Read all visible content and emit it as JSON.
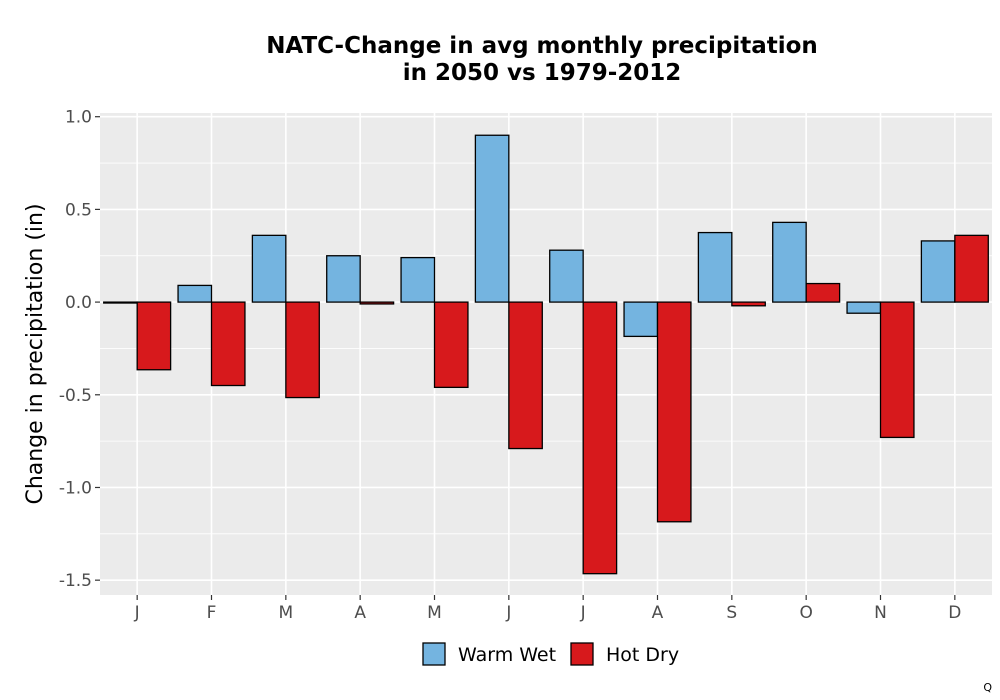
{
  "chart_data": {
    "type": "bar",
    "title_lines": [
      "NATC-Change in avg monthly precipitation",
      "in 2050 vs 1979-2012"
    ],
    "xlabel": "",
    "ylabel": "Change in precipitation (in)",
    "categories": [
      "J",
      "F",
      "M",
      "A",
      "M",
      "J",
      "J",
      "A",
      "S",
      "O",
      "N",
      "D"
    ],
    "series": [
      {
        "name": "Warm Wet",
        "color": "#74b4e0",
        "values": [
          -0.005,
          0.09,
          0.36,
          0.25,
          0.24,
          0.9,
          0.28,
          -0.185,
          0.375,
          0.43,
          -0.06,
          0.33
        ]
      },
      {
        "name": "Hot Dry",
        "color": "#d7191c",
        "values": [
          -0.365,
          -0.45,
          -0.515,
          -0.01,
          -0.46,
          -0.79,
          -1.465,
          -1.185,
          -0.02,
          0.1,
          -0.73,
          0.36
        ]
      }
    ],
    "ylim": [
      -1.58,
      1.02
    ],
    "yticks": [
      1.0,
      0.5,
      0.0,
      -0.5,
      -1.0,
      -1.5
    ],
    "ytick_labels": [
      "1.0",
      "0.5",
      "0.0",
      "-0.5",
      "-1.0",
      "-1.5"
    ],
    "grid": true,
    "legend_position": "bottom",
    "panel_background": "#ebebeb"
  },
  "corner_mark": "Q"
}
